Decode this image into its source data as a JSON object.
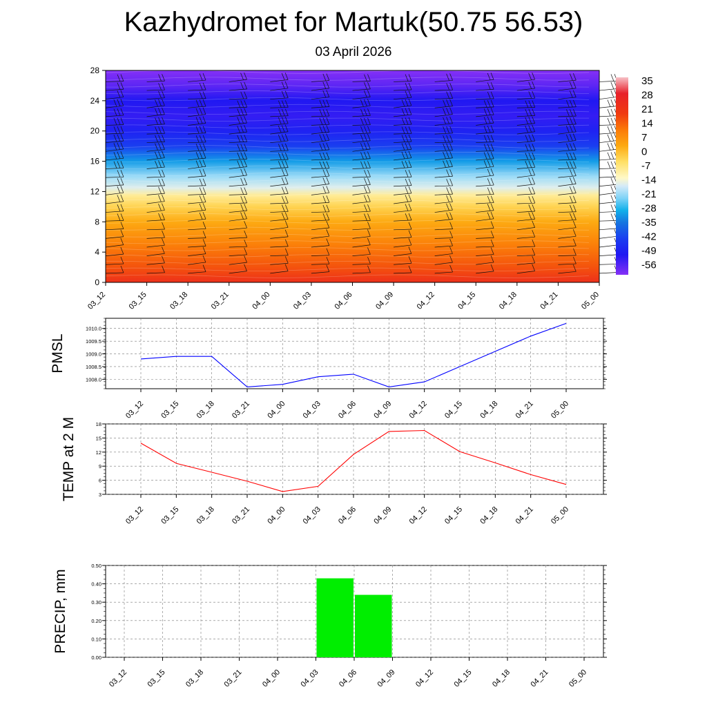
{
  "title": "Kazhydromet for Martuk(50.75 56.53)",
  "subtitle": "03 April 2026",
  "chart_data": [
    {
      "type": "heatmap",
      "time_labels": [
        "03_12",
        "03_15",
        "03_18",
        "03_21",
        "04_00",
        "04_03",
        "04_06",
        "04_09",
        "04_12",
        "04_15",
        "04_18",
        "04_21",
        "05_00"
      ],
      "y_ticks": [
        "0",
        "4",
        "8",
        "12",
        "16",
        "20",
        "24",
        "28"
      ],
      "ylim": [
        0,
        28
      ],
      "colorbar_labels": [
        "35",
        "28",
        "21",
        "14",
        "7",
        "0",
        "-7",
        "-14",
        "-21",
        "-28",
        "-35",
        "-42",
        "-49",
        "-56"
      ],
      "colorbar_range": [
        -60,
        38
      ],
      "color_stops": [
        {
          "value": 38,
          "color": "#f7c0c6"
        },
        {
          "value": 30,
          "color": "#e8202a"
        },
        {
          "value": 20,
          "color": "#f03a10"
        },
        {
          "value": 12,
          "color": "#fb7a08"
        },
        {
          "value": 4,
          "color": "#fdaa12"
        },
        {
          "value": -4,
          "color": "#ffe066"
        },
        {
          "value": -12,
          "color": "#fff8c8"
        },
        {
          "value": -16,
          "color": "#d4eaf8"
        },
        {
          "value": -22,
          "color": "#7ed3f7"
        },
        {
          "value": -28,
          "color": "#12b0ea"
        },
        {
          "value": -34,
          "color": "#1675e0"
        },
        {
          "value": -42,
          "color": "#1a3ef0"
        },
        {
          "value": -50,
          "color": "#2018f2"
        },
        {
          "value": -60,
          "color": "#8530f6"
        }
      ],
      "temperature_profile": [
        {
          "height": 0,
          "value": 24
        },
        {
          "height": 2,
          "value": 17
        },
        {
          "height": 5,
          "value": 11
        },
        {
          "height": 8,
          "value": 4
        },
        {
          "height": 10,
          "value": -2
        },
        {
          "height": 11.5,
          "value": -8
        },
        {
          "height": 12.5,
          "value": -15
        },
        {
          "height": 14,
          "value": -20
        },
        {
          "height": 16,
          "value": -30
        },
        {
          "height": 18,
          "value": -42
        },
        {
          "height": 20,
          "value": -48
        },
        {
          "height": 22,
          "value": -52
        },
        {
          "height": 24,
          "value": -50
        },
        {
          "height": 26,
          "value": -56
        },
        {
          "height": 28,
          "value": -60
        }
      ]
    },
    {
      "type": "line",
      "ylabel": "PMSL",
      "x": [
        "03_12",
        "03_15",
        "03_18",
        "03_21",
        "04_00",
        "04_03",
        "04_06",
        "04_09",
        "04_12",
        "04_15",
        "04_18",
        "04_21",
        "05_00"
      ],
      "series": [
        {
          "values": [
            1008.8,
            1008.9,
            1008.9,
            1007.7,
            1007.8,
            1008.1,
            1008.2,
            1007.7,
            1007.9,
            1008.5,
            1009.1,
            1009.7,
            1010.2
          ],
          "color": "#0000ff"
        }
      ],
      "ylim": [
        1007.63,
        1010.4
      ],
      "y_ticks": [
        "1008.0",
        "1008.5",
        "1009.0",
        "1009.5",
        "1010.0"
      ],
      "y_tick_values": [
        1008.0,
        1008.5,
        1009.0,
        1009.5,
        1010.0
      ]
    },
    {
      "type": "line",
      "ylabel": "TEMP at 2 M",
      "x": [
        "03_12",
        "03_15",
        "03_18",
        "03_21",
        "04_00",
        "04_03",
        "04_06",
        "04_09",
        "04_12",
        "04_15",
        "04_18",
        "04_21",
        "05_00"
      ],
      "series": [
        {
          "values": [
            13.9,
            9.6,
            7.7,
            5.8,
            3.6,
            4.7,
            11.5,
            16.4,
            16.6,
            12.1,
            9.7,
            7.2,
            5.1
          ],
          "color": "#ff0000"
        }
      ],
      "ylim": [
        3,
        18
      ],
      "y_ticks": [
        "3",
        "6",
        "9",
        "12",
        "15",
        "18"
      ],
      "y_tick_values": [
        3,
        6,
        9,
        12,
        15,
        18
      ]
    },
    {
      "type": "bar",
      "ylabel": "PRECIP, mm",
      "categories": [
        "03_12",
        "03_15",
        "03_18",
        "03_21",
        "04_00",
        "04_03",
        "04_06",
        "04_09",
        "04_12",
        "04_15",
        "04_18",
        "04_21",
        "05_00"
      ],
      "values": [
        0,
        0,
        0,
        0,
        0,
        0.43,
        0.34,
        0,
        0,
        0,
        0,
        0,
        0
      ],
      "color": "#00ee00",
      "ylim": [
        0,
        0.5
      ],
      "y_ticks": [
        "0.00",
        "0.10",
        "0.20",
        "0.30",
        "0.40",
        "0.50"
      ],
      "y_tick_values": [
        0,
        0.1,
        0.2,
        0.3,
        0.4,
        0.5
      ]
    }
  ]
}
